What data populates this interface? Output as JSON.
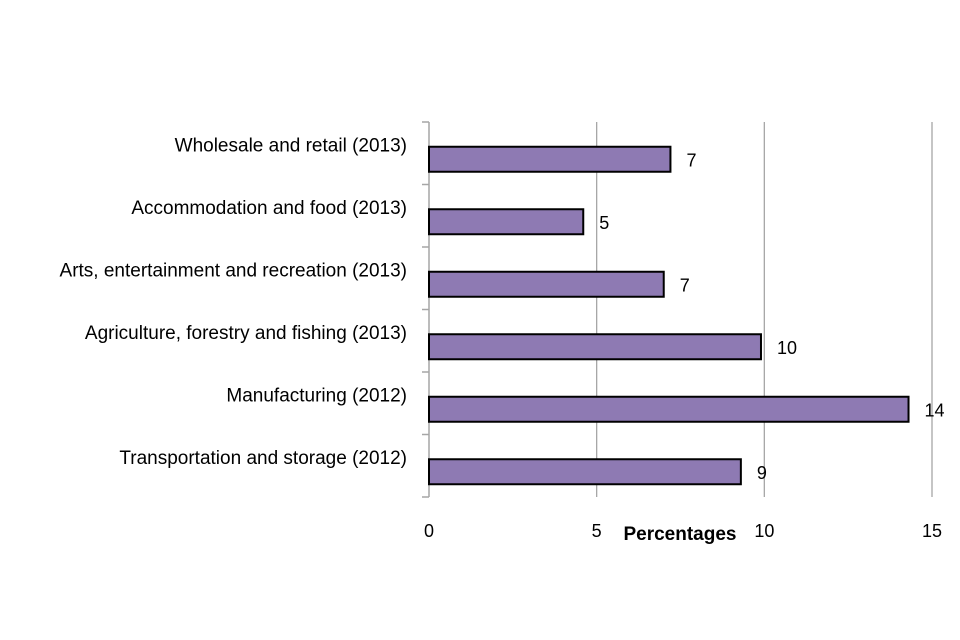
{
  "chart_data": {
    "type": "bar",
    "orientation": "horizontal",
    "categories": [
      "Wholesale and retail (2013)",
      "Accommodation and food (2013)",
      "Arts, entertainment and recreation (2013)",
      "Agriculture, forestry and fishing (2013)",
      "Manufacturing (2012)",
      "Transportation and storage (2012)"
    ],
    "values": [
      7.2,
      4.6,
      7.0,
      9.9,
      14.3,
      9.3
    ],
    "data_labels": [
      "7",
      "5",
      "7",
      "10",
      "14",
      "9"
    ],
    "title": "",
    "xlabel": "Percentages",
    "ylabel": "",
    "xlim": [
      0,
      15
    ],
    "xticks": [
      0,
      5,
      10,
      15
    ],
    "grid": "vertical",
    "legend": "none",
    "colors": {
      "bar_fill": "#8e7ab3",
      "bar_stroke": "#000000",
      "grid": "#a6a6a6",
      "axis": "#a6a6a6"
    }
  }
}
